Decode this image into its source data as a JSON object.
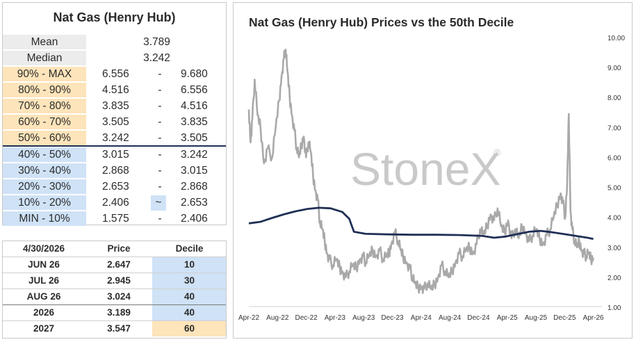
{
  "stats_table": {
    "title": "Nat Gas (Henry Hub)",
    "mean_label": "Mean",
    "mean_value": "3.789",
    "median_label": "Median",
    "median_value": "3.242",
    "rows": [
      {
        "label": "90% - MAX",
        "low": "6.556",
        "sep": "-",
        "high": "9.680",
        "tone": "orange"
      },
      {
        "label": "80% - 90%",
        "low": "4.516",
        "sep": "-",
        "high": "6.556",
        "tone": "orange"
      },
      {
        "label": "70% - 80%",
        "low": "3.835",
        "sep": "-",
        "high": "4.516",
        "tone": "orange"
      },
      {
        "label": "60% - 70%",
        "low": "3.505",
        "sep": "-",
        "high": "3.835",
        "tone": "orange"
      },
      {
        "label": "50% - 60%",
        "low": "3.242",
        "sep": "-",
        "high": "3.505",
        "tone": "orange"
      },
      {
        "label": "40% - 50%",
        "low": "3.015",
        "sep": "-",
        "high": "3.242",
        "tone": "blue"
      },
      {
        "label": "30% - 40%",
        "low": "2.868",
        "sep": "-",
        "high": "3.015",
        "tone": "blue"
      },
      {
        "label": "20% - 30%",
        "low": "2.653",
        "sep": "-",
        "high": "2.868",
        "tone": "blue"
      },
      {
        "label": "10% - 20%",
        "low": "2.406",
        "sep": "~",
        "high": "2.653",
        "tone": "blue"
      },
      {
        "label": "MIN - 10%",
        "low": "1.575",
        "sep": "-",
        "high": "2.406",
        "tone": "blue"
      }
    ]
  },
  "contracts_table": {
    "headers": {
      "date": "4/30/2026",
      "price": "Price",
      "decile": "Decile"
    },
    "rows": [
      {
        "contract": "JUN 26",
        "price": "2.647",
        "decile": "10",
        "tone": "blue"
      },
      {
        "contract": "JUL 26",
        "price": "2.945",
        "decile": "30",
        "tone": "blue"
      },
      {
        "contract": "AUG 26",
        "price": "3.024",
        "decile": "40",
        "tone": "blue"
      },
      {
        "contract": "2026",
        "price": "3.189",
        "decile": "40",
        "tone": "blue"
      },
      {
        "contract": "2027",
        "price": "3.547",
        "decile": "60",
        "tone": "orange"
      }
    ]
  },
  "colors": {
    "orange": "#fde4ba",
    "blue": "#cfe2f6",
    "grey": "#ececec",
    "price_line": "#a9a9a9",
    "decile_line": "#1f2f55",
    "watermark": "#c9c9c9"
  },
  "chart_data": {
    "type": "line",
    "title": "Nat Gas (Henry Hub) Prices vs the 50th Decile",
    "watermark": "StoneX",
    "watermark_mark": "®",
    "xlabel": "",
    "ylabel": "",
    "x_ticks": [
      "Apr-22",
      "Aug-22",
      "Dec-22",
      "Apr-23",
      "Aug-23",
      "Dec-23",
      "Apr-24",
      "Aug-24",
      "Dec-24",
      "Apr-25",
      "Aug-25",
      "Dec-25",
      "Apr-26"
    ],
    "y_ticks": [
      "1.00",
      "2.00",
      "3.00",
      "4.00",
      "5.00",
      "6.00",
      "7.00",
      "8.00",
      "9.00",
      "10.00"
    ],
    "ylim": [
      1,
      10
    ],
    "y_axis_side": "right",
    "grid": false,
    "series": [
      {
        "values": [
          [
            0,
            7.6
          ],
          [
            0.15,
            6.5
          ],
          [
            0.3,
            7.3
          ],
          [
            0.5,
            8.6
          ],
          [
            0.75,
            7.4
          ],
          [
            1.0,
            7.0
          ],
          [
            1.3,
            5.8
          ],
          [
            1.6,
            6.3
          ],
          [
            2.0,
            6.0
          ],
          [
            2.3,
            7.0
          ],
          [
            2.6,
            7.9
          ],
          [
            2.8,
            8.7
          ],
          [
            3.0,
            9.3
          ],
          [
            3.15,
            9.6
          ],
          [
            3.3,
            8.9
          ],
          [
            3.5,
            8.0
          ],
          [
            3.7,
            7.4
          ],
          [
            3.9,
            6.9
          ],
          [
            4.1,
            6.3
          ],
          [
            4.3,
            6.0
          ],
          [
            4.5,
            6.4
          ],
          [
            4.7,
            6.7
          ],
          [
            4.9,
            6.0
          ],
          [
            5.1,
            6.5
          ],
          [
            5.3,
            6.2
          ],
          [
            5.5,
            5.4
          ],
          [
            5.7,
            4.9
          ],
          [
            5.9,
            4.6
          ],
          [
            6.1,
            3.8
          ],
          [
            6.3,
            3.6
          ],
          [
            6.5,
            3.2
          ],
          [
            6.7,
            2.8
          ],
          [
            6.9,
            2.6
          ],
          [
            7.2,
            2.4
          ],
          [
            7.5,
            2.6
          ],
          [
            7.8,
            2.3
          ],
          [
            8.0,
            2.2
          ],
          [
            8.3,
            2.0
          ],
          [
            8.6,
            2.2
          ],
          [
            8.9,
            2.4
          ],
          [
            9.2,
            2.3
          ],
          [
            9.5,
            2.6
          ],
          [
            9.8,
            2.7
          ],
          [
            10.0,
            2.5
          ],
          [
            10.3,
            2.7
          ],
          [
            10.6,
            2.9
          ],
          [
            10.9,
            2.7
          ],
          [
            11.2,
            2.9
          ],
          [
            11.5,
            2.6
          ],
          [
            11.8,
            2.7
          ],
          [
            12.0,
            2.8
          ],
          [
            12.2,
            3.1
          ],
          [
            12.5,
            3.5
          ],
          [
            12.8,
            3.2
          ],
          [
            13.0,
            2.9
          ],
          [
            13.2,
            2.7
          ],
          [
            13.5,
            2.5
          ],
          [
            13.8,
            2.3
          ],
          [
            14.0,
            2.0
          ],
          [
            14.2,
            1.8
          ],
          [
            14.5,
            1.65
          ],
          [
            14.8,
            1.7
          ],
          [
            15.0,
            1.6
          ],
          [
            15.3,
            1.8
          ],
          [
            15.6,
            1.6
          ],
          [
            15.9,
            1.75
          ],
          [
            16.2,
            2.0
          ],
          [
            16.5,
            2.4
          ],
          [
            16.8,
            2.2
          ],
          [
            17.1,
            2.0
          ],
          [
            17.4,
            2.2
          ],
          [
            17.7,
            2.5
          ],
          [
            18.0,
            2.8
          ],
          [
            18.3,
            2.7
          ],
          [
            18.6,
            2.9
          ],
          [
            18.9,
            3.0
          ],
          [
            19.2,
            2.8
          ],
          [
            19.5,
            3.1
          ],
          [
            19.8,
            3.6
          ],
          [
            20.1,
            3.4
          ],
          [
            20.4,
            3.7
          ],
          [
            20.7,
            4.1
          ],
          [
            21.0,
            3.9
          ],
          [
            21.3,
            4.3
          ],
          [
            21.6,
            3.7
          ],
          [
            21.9,
            3.5
          ],
          [
            22.2,
            3.9
          ],
          [
            22.5,
            3.3
          ],
          [
            22.8,
            3.6
          ],
          [
            23.1,
            3.3
          ],
          [
            23.4,
            3.7
          ],
          [
            23.7,
            3.5
          ],
          [
            24.0,
            3.2
          ],
          [
            24.3,
            3.4
          ],
          [
            24.6,
            3.6
          ],
          [
            24.9,
            3.3
          ],
          [
            25.2,
            3.1
          ],
          [
            25.5,
            3.4
          ],
          [
            25.8,
            3.6
          ],
          [
            26.1,
            4.0
          ],
          [
            26.4,
            4.4
          ],
          [
            26.7,
            4.8
          ],
          [
            26.9,
            4.5
          ],
          [
            27.1,
            4.0
          ],
          [
            27.25,
            5.0
          ],
          [
            27.4,
            7.45
          ],
          [
            27.55,
            4.2
          ],
          [
            27.7,
            3.6
          ],
          [
            27.9,
            3.2
          ],
          [
            28.1,
            3.0
          ],
          [
            28.3,
            3.2
          ],
          [
            28.5,
            2.9
          ],
          [
            28.7,
            2.8
          ],
          [
            28.9,
            2.7
          ],
          [
            29.1,
            2.8
          ],
          [
            29.3,
            2.6
          ],
          [
            29.5,
            2.65
          ]
        ]
      },
      {
        "values": [
          [
            0,
            3.8
          ],
          [
            1,
            3.85
          ],
          [
            2,
            3.98
          ],
          [
            3,
            4.1
          ],
          [
            4,
            4.2
          ],
          [
            5,
            4.28
          ],
          [
            6,
            4.32
          ],
          [
            7,
            4.3
          ],
          [
            8,
            4.18
          ],
          [
            8.6,
            3.95
          ],
          [
            9.0,
            3.52
          ],
          [
            10,
            3.45
          ],
          [
            12,
            3.43
          ],
          [
            14,
            3.42
          ],
          [
            16,
            3.42
          ],
          [
            18,
            3.41
          ],
          [
            20,
            3.38
          ],
          [
            21,
            3.32
          ],
          [
            22,
            3.36
          ],
          [
            23,
            3.44
          ],
          [
            24,
            3.52
          ],
          [
            25,
            3.55
          ],
          [
            26,
            3.5
          ],
          [
            27,
            3.44
          ],
          [
            28,
            3.38
          ],
          [
            29,
            3.32
          ],
          [
            29.5,
            3.28
          ]
        ]
      }
    ]
  }
}
